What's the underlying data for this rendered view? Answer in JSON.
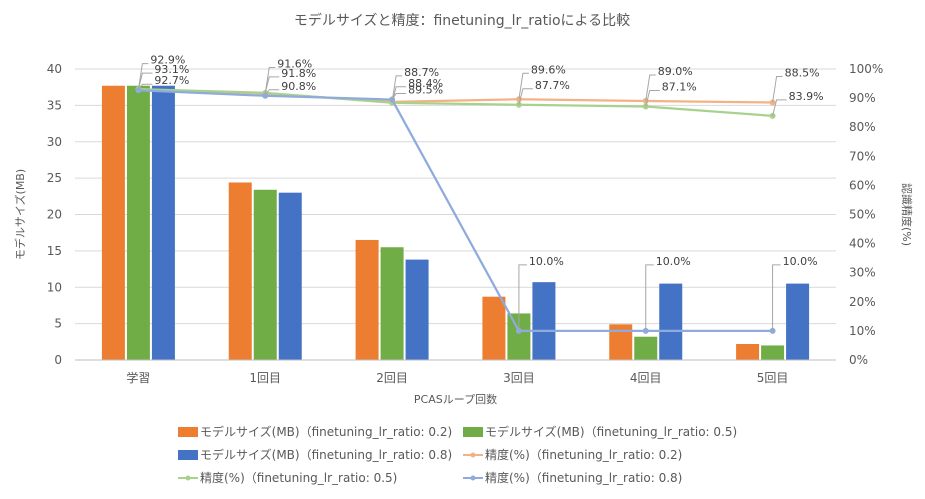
{
  "chart_data": {
    "type": "bar+line",
    "title": "モデルサイズと精度：finetuning_lr_ratioによる比較",
    "xlabel": "PCASループ回数",
    "ylabel_left": "モデルサイズ(MB)",
    "ylabel_right": "認識精度(%)",
    "categories": [
      "学習",
      "1回目",
      "2回目",
      "3回目",
      "4回目",
      "5回目"
    ],
    "ylim_left": [
      0,
      40
    ],
    "yticks_left": [
      "0",
      "5",
      "10",
      "15",
      "20",
      "25",
      "30",
      "35",
      "40"
    ],
    "ylim_right": [
      0,
      100
    ],
    "yticks_right": [
      "0%",
      "10%",
      "20%",
      "30%",
      "40%",
      "50%",
      "60%",
      "70%",
      "80%",
      "90%",
      "100%"
    ],
    "grid": "horizontal",
    "legend_position": "bottom",
    "bar_series": [
      {
        "name": "モデルサイズ(MB)（finetuning_lr_ratio: 0.2)",
        "color": "#ED7D31",
        "values": [
          37.7,
          24.4,
          16.5,
          8.7,
          4.9,
          2.2
        ]
      },
      {
        "name": "モデルサイズ(MB)（finetuning_lr_ratio: 0.5)",
        "color": "#70AD47",
        "values": [
          37.7,
          23.4,
          15.5,
          6.4,
          3.2,
          2.0
        ]
      },
      {
        "name": "モデルサイズ(MB)（finetuning_lr_ratio: 0.8)",
        "color": "#4472C4",
        "values": [
          37.7,
          23.0,
          13.8,
          10.7,
          10.5,
          10.5
        ]
      }
    ],
    "line_series": [
      {
        "name": "精度(%)（finetuning_lr_ratio: 0.2)",
        "color": "#F4B183",
        "values": [
          92.9,
          91.6,
          88.7,
          89.6,
          89.0,
          88.5
        ],
        "labels": [
          "92.9%",
          "91.6%",
          "88.7%",
          "89.6%",
          "89.0%",
          "88.5%"
        ]
      },
      {
        "name": "精度(%)（finetuning_lr_ratio: 0.5)",
        "color": "#A9D18E",
        "values": [
          93.1,
          91.8,
          88.4,
          87.7,
          87.1,
          83.9
        ],
        "labels": [
          "93.1%",
          "91.8%",
          "88.4%",
          "87.7%",
          "87.1%",
          "83.9%"
        ]
      },
      {
        "name": "精度(%)（finetuning_lr_ratio: 0.8)",
        "color": "#8FAADC",
        "values": [
          92.7,
          90.8,
          89.5,
          10.0,
          10.0,
          10.0
        ],
        "labels": [
          "92.7%",
          "90.8%",
          "89.5%",
          "10.0%",
          "10.0%",
          "10.0%"
        ]
      }
    ]
  }
}
